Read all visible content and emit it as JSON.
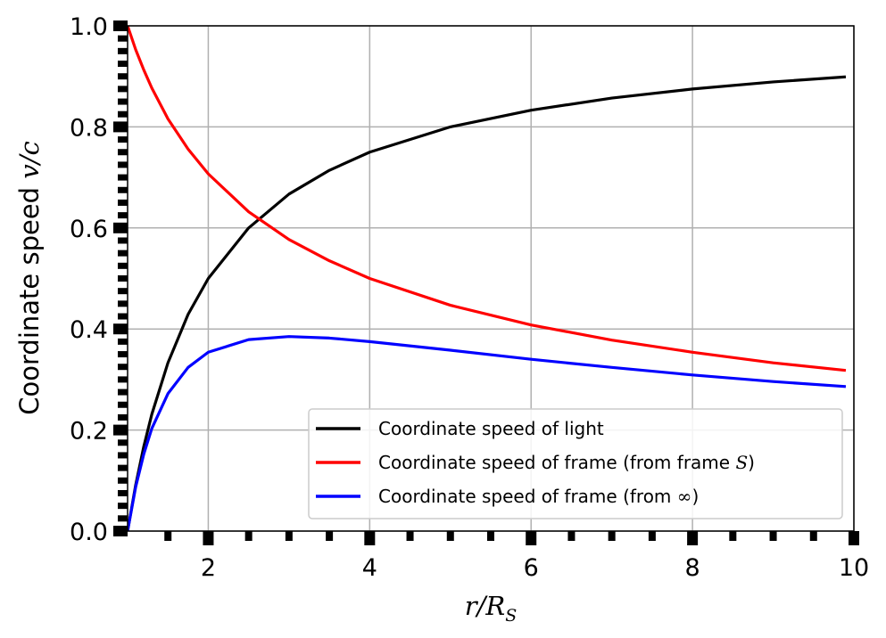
{
  "chart_data": {
    "type": "line",
    "title": "",
    "xlabel": "r/R_S",
    "ylabel": "Coordinate speed v/c",
    "xlabel_parts": {
      "italic": "r/R",
      "sub": "S"
    },
    "ylabel_parts": {
      "text": "Coordinate speed ",
      "math": "v/c"
    },
    "xlim": [
      1,
      10
    ],
    "ylim": [
      0,
      1
    ],
    "x_ticks": [
      2,
      4,
      6,
      8,
      10
    ],
    "x_tick_labels": [
      "2",
      "4",
      "6",
      "8",
      "10"
    ],
    "y_ticks": [
      0,
      0.2,
      0.4,
      0.6,
      0.8,
      1.0
    ],
    "y_tick_labels": [
      "0.0",
      "0.2",
      "0.4",
      "0.6",
      "0.8",
      "1.0"
    ],
    "grid": true,
    "legend_placement": "lower-right",
    "series": [
      {
        "name": "Coordinate speed of light",
        "color": "#000000",
        "x": [
          1.0,
          1.1,
          1.2,
          1.3,
          1.5,
          1.75,
          2.0,
          2.5,
          3.0,
          3.5,
          4.0,
          5.0,
          6.0,
          7.0,
          8.0,
          9.0,
          9.9
        ],
        "y": [
          0.0,
          0.091,
          0.167,
          0.231,
          0.333,
          0.429,
          0.5,
          0.6,
          0.667,
          0.714,
          0.75,
          0.8,
          0.833,
          0.857,
          0.875,
          0.889,
          0.899
        ]
      },
      {
        "name": "Coordinate speed of frame (from frame S)",
        "color": "#ff0000",
        "x": [
          1.0,
          1.1,
          1.2,
          1.3,
          1.5,
          1.75,
          2.0,
          2.5,
          3.0,
          3.5,
          4.0,
          5.0,
          6.0,
          7.0,
          8.0,
          9.0,
          9.9
        ],
        "y": [
          1.0,
          0.953,
          0.913,
          0.877,
          0.816,
          0.756,
          0.707,
          0.632,
          0.577,
          0.535,
          0.5,
          0.447,
          0.408,
          0.378,
          0.354,
          0.333,
          0.318
        ]
      },
      {
        "name": "Coordinate speed of frame (from ∞)",
        "color": "#0000ff",
        "x": [
          1.0,
          1.1,
          1.2,
          1.3,
          1.5,
          1.75,
          2.0,
          2.5,
          3.0,
          3.5,
          4.0,
          5.0,
          6.0,
          7.0,
          8.0,
          9.0,
          9.9
        ],
        "y": [
          0.0,
          0.087,
          0.152,
          0.203,
          0.272,
          0.324,
          0.354,
          0.379,
          0.385,
          0.382,
          0.375,
          0.358,
          0.34,
          0.324,
          0.309,
          0.296,
          0.286
        ]
      }
    ]
  },
  "legend": {
    "entries": [
      {
        "label": "Coordinate speed of light",
        "color": "#000000"
      },
      {
        "label_prefix": "Coordinate speed of frame (from frame ",
        "label_math": "S",
        "label_suffix": ")",
        "color": "#ff0000"
      },
      {
        "label_prefix": "Coordinate speed of frame (from ",
        "label_math": "∞",
        "label_suffix": ")",
        "color": "#0000ff"
      }
    ]
  }
}
